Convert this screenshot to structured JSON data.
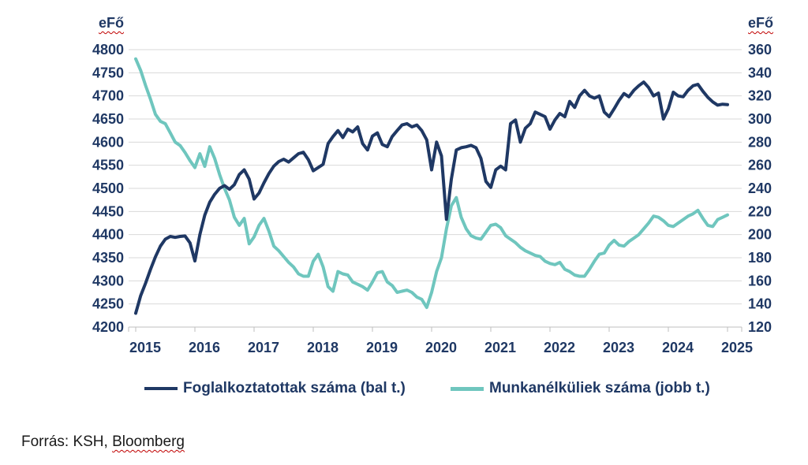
{
  "left_axis": {
    "title": "eFő",
    "ticks": [
      "4800",
      "4750",
      "4700",
      "4650",
      "4600",
      "4550",
      "4500",
      "4450",
      "4400",
      "4350",
      "4300",
      "4250",
      "4200"
    ]
  },
  "right_axis": {
    "title": "eFő",
    "ticks": [
      "360",
      "340",
      "320",
      "300",
      "280",
      "260",
      "240",
      "220",
      "200",
      "180",
      "160",
      "140",
      "120"
    ]
  },
  "x_axis": {
    "years": [
      "2015",
      "2016",
      "2017",
      "2018",
      "2019",
      "2020",
      "2021",
      "2022",
      "2023",
      "2024",
      "2025"
    ]
  },
  "legend": [
    {
      "label": "Foglalkoztatottak száma (bal t.)",
      "color": "#1F3864"
    },
    {
      "label": "Munkanélküliek száma (jobb t.)",
      "color": "#6FC6BE"
    }
  ],
  "source": {
    "prefix": "Forrás: KSH, ",
    "underlined": "Bloomberg"
  },
  "colors": {
    "employed_line": "#1F3864",
    "unemployed_line": "#6FC6BE",
    "gridline": "#D9D9D9",
    "axis_line": "#BFBFBF",
    "tick_text": "#1F3864",
    "spellcheck_underline": "#C00000"
  },
  "chart_data": {
    "type": "line",
    "title": "",
    "x_start": "2015-01",
    "x_end": "2025-01",
    "frequency": "monthly",
    "grid": true,
    "legend_position": "bottom",
    "left_ylabel": "eFő",
    "right_ylabel": "eFő",
    "left_ylim": [
      4200,
      4800
    ],
    "right_ylim": [
      120,
      360
    ],
    "x_tick_labels": [
      "2015",
      "2016",
      "2017",
      "2018",
      "2019",
      "2020",
      "2021",
      "2022",
      "2023",
      "2024",
      "2025"
    ],
    "series": [
      {
        "name": "Foglalkoztatottak száma (bal t.)",
        "axis": "left",
        "color": "#1F3864",
        "values": [
          4230,
          4268,
          4295,
          4325,
          4352,
          4375,
          4390,
          4396,
          4394,
          4396,
          4397,
          4382,
          4343,
          4400,
          4442,
          4470,
          4487,
          4500,
          4506,
          4498,
          4508,
          4530,
          4540,
          4520,
          4477,
          4490,
          4512,
          4532,
          4548,
          4558,
          4563,
          4557,
          4566,
          4575,
          4578,
          4562,
          4538,
          4545,
          4552,
          4597,
          4612,
          4625,
          4610,
          4628,
          4622,
          4633,
          4597,
          4583,
          4613,
          4620,
          4595,
          4590,
          4612,
          4625,
          4637,
          4640,
          4633,
          4637,
          4625,
          4605,
          4540,
          4600,
          4570,
          4433,
          4520,
          4583,
          4588,
          4590,
          4593,
          4588,
          4565,
          4515,
          4502,
          4540,
          4548,
          4540,
          4640,
          4648,
          4600,
          4630,
          4640,
          4665,
          4660,
          4655,
          4628,
          4648,
          4662,
          4655,
          4688,
          4675,
          4700,
          4712,
          4700,
          4695,
          4700,
          4665,
          4655,
          4672,
          4690,
          4705,
          4698,
          4712,
          4722,
          4730,
          4718,
          4700,
          4706,
          4650,
          4672,
          4708,
          4700,
          4698,
          4712,
          4722,
          4725,
          4710,
          4697,
          4687,
          4680,
          4682,
          4681
        ]
      },
      {
        "name": "Munkanélküliek száma (jobb t.)",
        "axis": "right",
        "color": "#6FC6BE",
        "values": [
          352,
          342,
          329,
          317,
          304,
          298,
          296,
          288,
          280,
          277,
          271,
          264,
          258,
          270,
          259,
          276,
          266,
          252,
          240,
          230,
          215,
          208,
          214,
          192,
          198,
          208,
          214,
          203,
          190,
          186,
          181,
          176,
          172,
          166,
          164,
          164,
          177,
          183,
          172,
          155,
          151,
          168,
          166,
          165,
          159,
          157,
          155,
          152,
          159,
          167,
          168,
          159,
          156,
          150,
          151,
          152,
          150,
          146,
          144,
          137,
          150,
          168,
          180,
          205,
          225,
          232,
          215,
          205,
          199,
          197,
          196,
          202,
          208,
          209,
          206,
          199,
          196,
          193,
          189,
          186,
          184,
          182,
          181,
          177,
          175,
          174,
          176,
          170,
          168,
          165,
          164,
          164,
          170,
          177,
          183,
          184,
          191,
          195,
          191,
          190,
          194,
          197,
          200,
          205,
          210,
          216,
          215,
          212,
          208,
          207,
          210,
          213,
          216,
          218,
          221,
          214,
          208,
          207,
          213,
          215,
          217
        ]
      }
    ]
  }
}
